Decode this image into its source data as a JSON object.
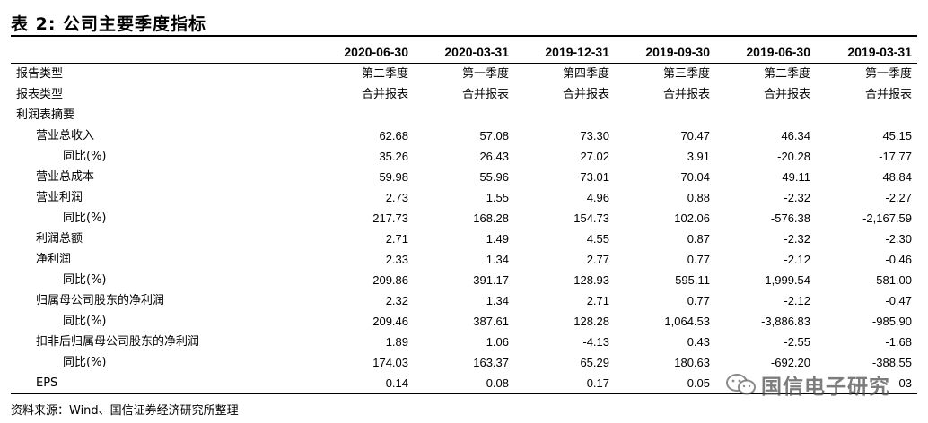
{
  "title": "表 2:  公司主要季度指标",
  "columns": [
    "",
    "2020-06-30",
    "2020-03-31",
    "2019-12-31",
    "2019-09-30",
    "2019-06-30",
    "2019-03-31"
  ],
  "rows": [
    {
      "label": "报告类型",
      "values": [
        "第二季度",
        "第一季度",
        "第四季度",
        "第三季度",
        "第二季度",
        "第一季度"
      ]
    },
    {
      "label": "报表类型",
      "values": [
        "合并报表",
        "合并报表",
        "合并报表",
        "合并报表",
        "合并报表",
        "合并报表"
      ]
    },
    {
      "label": "利润表摘要",
      "values": [
        "",
        "",
        "",
        "",
        "",
        ""
      ]
    },
    {
      "label": "营业总收入",
      "values": [
        "62.68",
        "57.08",
        "73.30",
        "70.47",
        "46.34",
        "45.15"
      ]
    },
    {
      "label": "同比(%)",
      "values": [
        "35.26",
        "26.43",
        "27.02",
        "3.91",
        "-20.28",
        "-17.77"
      ]
    },
    {
      "label": "营业总成本",
      "values": [
        "59.98",
        "55.96",
        "73.01",
        "70.04",
        "49.11",
        "48.84"
      ]
    },
    {
      "label": "营业利润",
      "values": [
        "2.73",
        "1.55",
        "4.96",
        "0.88",
        "-2.32",
        "-2.27"
      ]
    },
    {
      "label": "同比(%)",
      "values": [
        "217.73",
        "168.28",
        "154.73",
        "102.06",
        "-576.38",
        "-2,167.59"
      ]
    },
    {
      "label": "利润总额",
      "values": [
        "2.71",
        "1.49",
        "4.55",
        "0.87",
        "-2.32",
        "-2.30"
      ]
    },
    {
      "label": "净利润",
      "values": [
        "2.33",
        "1.34",
        "2.77",
        "0.77",
        "-2.12",
        "-0.46"
      ]
    },
    {
      "label": "同比(%)",
      "values": [
        "209.86",
        "391.17",
        "128.93",
        "595.11",
        "-1,999.54",
        "-581.00"
      ]
    },
    {
      "label": "归属母公司股东的净利润",
      "values": [
        "2.32",
        "1.34",
        "2.71",
        "0.77",
        "-2.12",
        "-0.47"
      ]
    },
    {
      "label": "同比(%)",
      "values": [
        "209.46",
        "387.61",
        "128.28",
        "1,064.53",
        "-3,886.83",
        "-985.90"
      ]
    },
    {
      "label": "扣非后归属母公司股东的净利润",
      "values": [
        "1.89",
        "1.06",
        "-4.13",
        "0.43",
        "-2.55",
        "-1.68"
      ]
    },
    {
      "label": "同比(%)",
      "values": [
        "174.03",
        "163.37",
        "65.29",
        "180.63",
        "-692.20",
        "-388.55"
      ]
    },
    {
      "label": "EPS",
      "values": [
        "0.14",
        "0.08",
        "0.17",
        "0.05",
        "",
        "03"
      ]
    }
  ],
  "source": "资料来源：Wind、国信证券经济研究所整理",
  "watermark": {
    "text": "国信电子研究",
    "icon": "wechat-icon"
  }
}
